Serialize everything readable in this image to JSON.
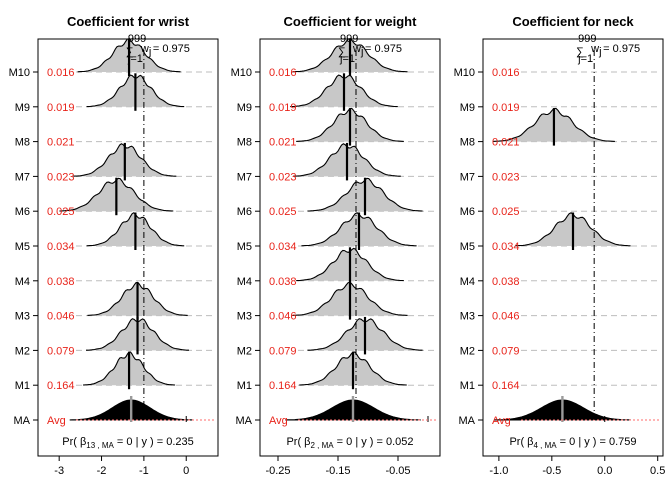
{
  "models": [
    "M10",
    "M9",
    "M8",
    "M7",
    "M6",
    "M5",
    "M4",
    "M3",
    "M2",
    "M1",
    "MA"
  ],
  "model_weights": [
    "0.016",
    "0.019",
    "0.021",
    "0.023",
    "0.025",
    "0.034",
    "0.038",
    "0.046",
    "0.079",
    "0.164",
    "Avg"
  ],
  "chart_data": [
    {
      "type": "density",
      "title": "Coefficient for wrist",
      "sum_label": "w",
      "sum_value": "0.975",
      "sum_upper": "999",
      "sum_lower": "j=1",
      "prob_text": "Pr( β",
      "prob_sub": "13 , MA",
      "prob_tail": " = 0 | y ) = 0.235",
      "xlim": [
        -3.5,
        0.75
      ],
      "xticks": [
        -3,
        -2,
        -1,
        0
      ],
      "tick_labels": [
        "-3",
        "-2",
        "-1",
        "0"
      ],
      "mean": -1.0,
      "rows": [
        {
          "model": "M10",
          "included": true,
          "mode": -1.35,
          "sd": 0.38
        },
        {
          "model": "M9",
          "included": true,
          "mode": -1.2,
          "sd": 0.36
        },
        {
          "model": "M8",
          "included": false
        },
        {
          "model": "M7",
          "included": true,
          "mode": -1.45,
          "sd": 0.38
        },
        {
          "model": "M6",
          "included": true,
          "mode": -1.65,
          "sd": 0.42
        },
        {
          "model": "M5",
          "included": true,
          "mode": -1.2,
          "sd": 0.36
        },
        {
          "model": "M4",
          "included": false
        },
        {
          "model": "M3",
          "included": true,
          "mode": -1.15,
          "sd": 0.37
        },
        {
          "model": "M2",
          "included": true,
          "mode": -1.15,
          "sd": 0.38
        },
        {
          "model": "M1",
          "included": true,
          "mode": -1.35,
          "sd": 0.34
        }
      ],
      "average": {
        "mode": -1.3,
        "sd": 0.45,
        "spike_at": 0
      }
    },
    {
      "type": "density",
      "title": "Coefficient for weight",
      "sum_label": "w",
      "sum_value": "0.975",
      "sum_upper": "999",
      "sum_lower": "j=1",
      "prob_text": "Pr( β",
      "prob_sub": "2 , MA",
      "prob_tail": " = 0 | y ) = 0.052",
      "xlim": [
        -0.28,
        0.02
      ],
      "xticks": [
        -0.25,
        -0.15,
        -0.05
      ],
      "tick_labels": [
        "-0.25",
        "-0.15",
        "-0.05"
      ],
      "mean": -0.12,
      "rows": [
        {
          "model": "M10",
          "included": true,
          "mode": -0.13,
          "sd": 0.03
        },
        {
          "model": "M9",
          "included": true,
          "mode": -0.14,
          "sd": 0.028
        },
        {
          "model": "M8",
          "included": true,
          "mode": -0.13,
          "sd": 0.028
        },
        {
          "model": "M7",
          "included": true,
          "mode": -0.135,
          "sd": 0.028
        },
        {
          "model": "M6",
          "included": true,
          "mode": -0.105,
          "sd": 0.03
        },
        {
          "model": "M5",
          "included": true,
          "mode": -0.115,
          "sd": 0.03
        },
        {
          "model": "M4",
          "included": true,
          "mode": -0.13,
          "sd": 0.028
        },
        {
          "model": "M3",
          "included": true,
          "mode": -0.13,
          "sd": 0.03
        },
        {
          "model": "M2",
          "included": true,
          "mode": -0.105,
          "sd": 0.03
        },
        {
          "model": "M1",
          "included": true,
          "mode": -0.125,
          "sd": 0.028
        }
      ],
      "average": {
        "mode": -0.125,
        "sd": 0.035,
        "spike_at": 0
      }
    },
    {
      "type": "density",
      "title": "Coefficient for neck",
      "sum_label": "w",
      "sum_value": "0.975",
      "sum_upper": "999",
      "sum_lower": "j=1",
      "prob_text": "Pr( β",
      "prob_sub": "4 , MA",
      "prob_tail": " = 0 | y ) = 0.759",
      "xlim": [
        -1.15,
        0.55
      ],
      "xticks": [
        -1.0,
        -0.5,
        0.0,
        0.5
      ],
      "tick_labels": [
        "-1.0",
        "-0.5",
        "0.0",
        "0.5"
      ],
      "mean": -0.1,
      "rows": [
        {
          "model": "M10",
          "included": false
        },
        {
          "model": "M9",
          "included": false
        },
        {
          "model": "M8",
          "included": true,
          "mode": -0.48,
          "sd": 0.18
        },
        {
          "model": "M7",
          "included": false
        },
        {
          "model": "M6",
          "included": false
        },
        {
          "model": "M5",
          "included": true,
          "mode": -0.3,
          "sd": 0.17
        },
        {
          "model": "M4",
          "included": false
        },
        {
          "model": "M3",
          "included": false
        },
        {
          "model": "M2",
          "included": false
        },
        {
          "model": "M1",
          "included": false
        }
      ],
      "average": {
        "mode": -0.4,
        "sd": 0.2,
        "spike_at": 0
      }
    }
  ]
}
